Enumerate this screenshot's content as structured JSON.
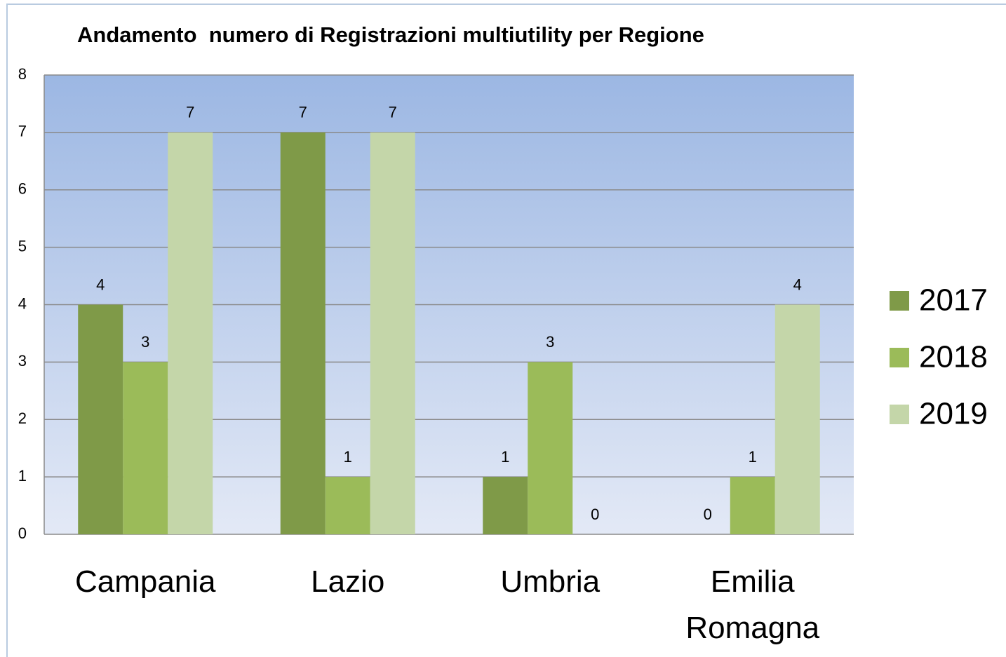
{
  "chart_data": {
    "type": "bar",
    "title": "Andamento  numero di Registrazioni multiutility per Regione",
    "categories": [
      "Campania",
      "Lazio",
      "Umbria",
      "Emilia Romagna"
    ],
    "series": [
      {
        "name": "2017",
        "color": "#7f9a48",
        "values": [
          4,
          7,
          1,
          0
        ]
      },
      {
        "name": "2018",
        "color": "#9bbb59",
        "values": [
          3,
          1,
          3,
          1
        ]
      },
      {
        "name": "2019",
        "color": "#c4d6a9",
        "values": [
          7,
          7,
          0,
          4
        ]
      }
    ],
    "ylim": [
      0,
      8
    ],
    "yticks": [
      0,
      1,
      2,
      3,
      4,
      5,
      6,
      7,
      8
    ],
    "grid": true,
    "legend": "right"
  }
}
